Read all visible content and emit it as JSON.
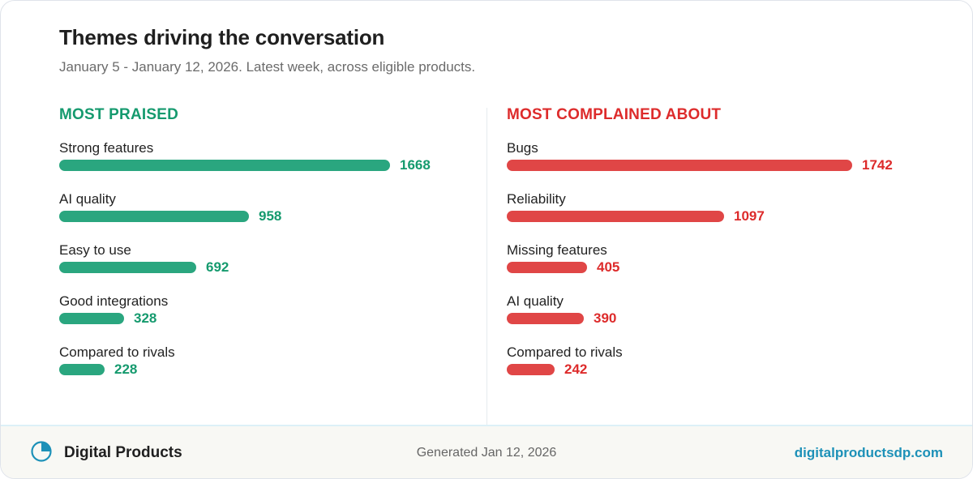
{
  "header": {
    "title": "Themes driving the conversation",
    "subtitle": "January 5 - January 12, 2026. Latest week, across eligible products."
  },
  "chart_data": [
    {
      "type": "bar",
      "orientation": "horizontal",
      "title": "MOST PRAISED",
      "color": "#2aa67f",
      "categories": [
        "Strong features",
        "AI quality",
        "Easy to use",
        "Good integrations",
        "Compared to rivals"
      ],
      "values": [
        1668,
        958,
        692,
        328,
        228
      ]
    },
    {
      "type": "bar",
      "orientation": "horizontal",
      "title": "MOST COMPLAINED ABOUT",
      "color": "#e04646",
      "categories": [
        "Bugs",
        "Reliability",
        "Missing features",
        "AI quality",
        "Compared to rivals"
      ],
      "values": [
        1742,
        1097,
        405,
        390,
        242
      ]
    }
  ],
  "footer": {
    "brand": "Digital Products",
    "generated": "Generated Jan 12, 2026",
    "site": "digitalproductsdp.com",
    "logo_icon": "pie-chart-icon",
    "accent_color": "#1d91b8"
  }
}
